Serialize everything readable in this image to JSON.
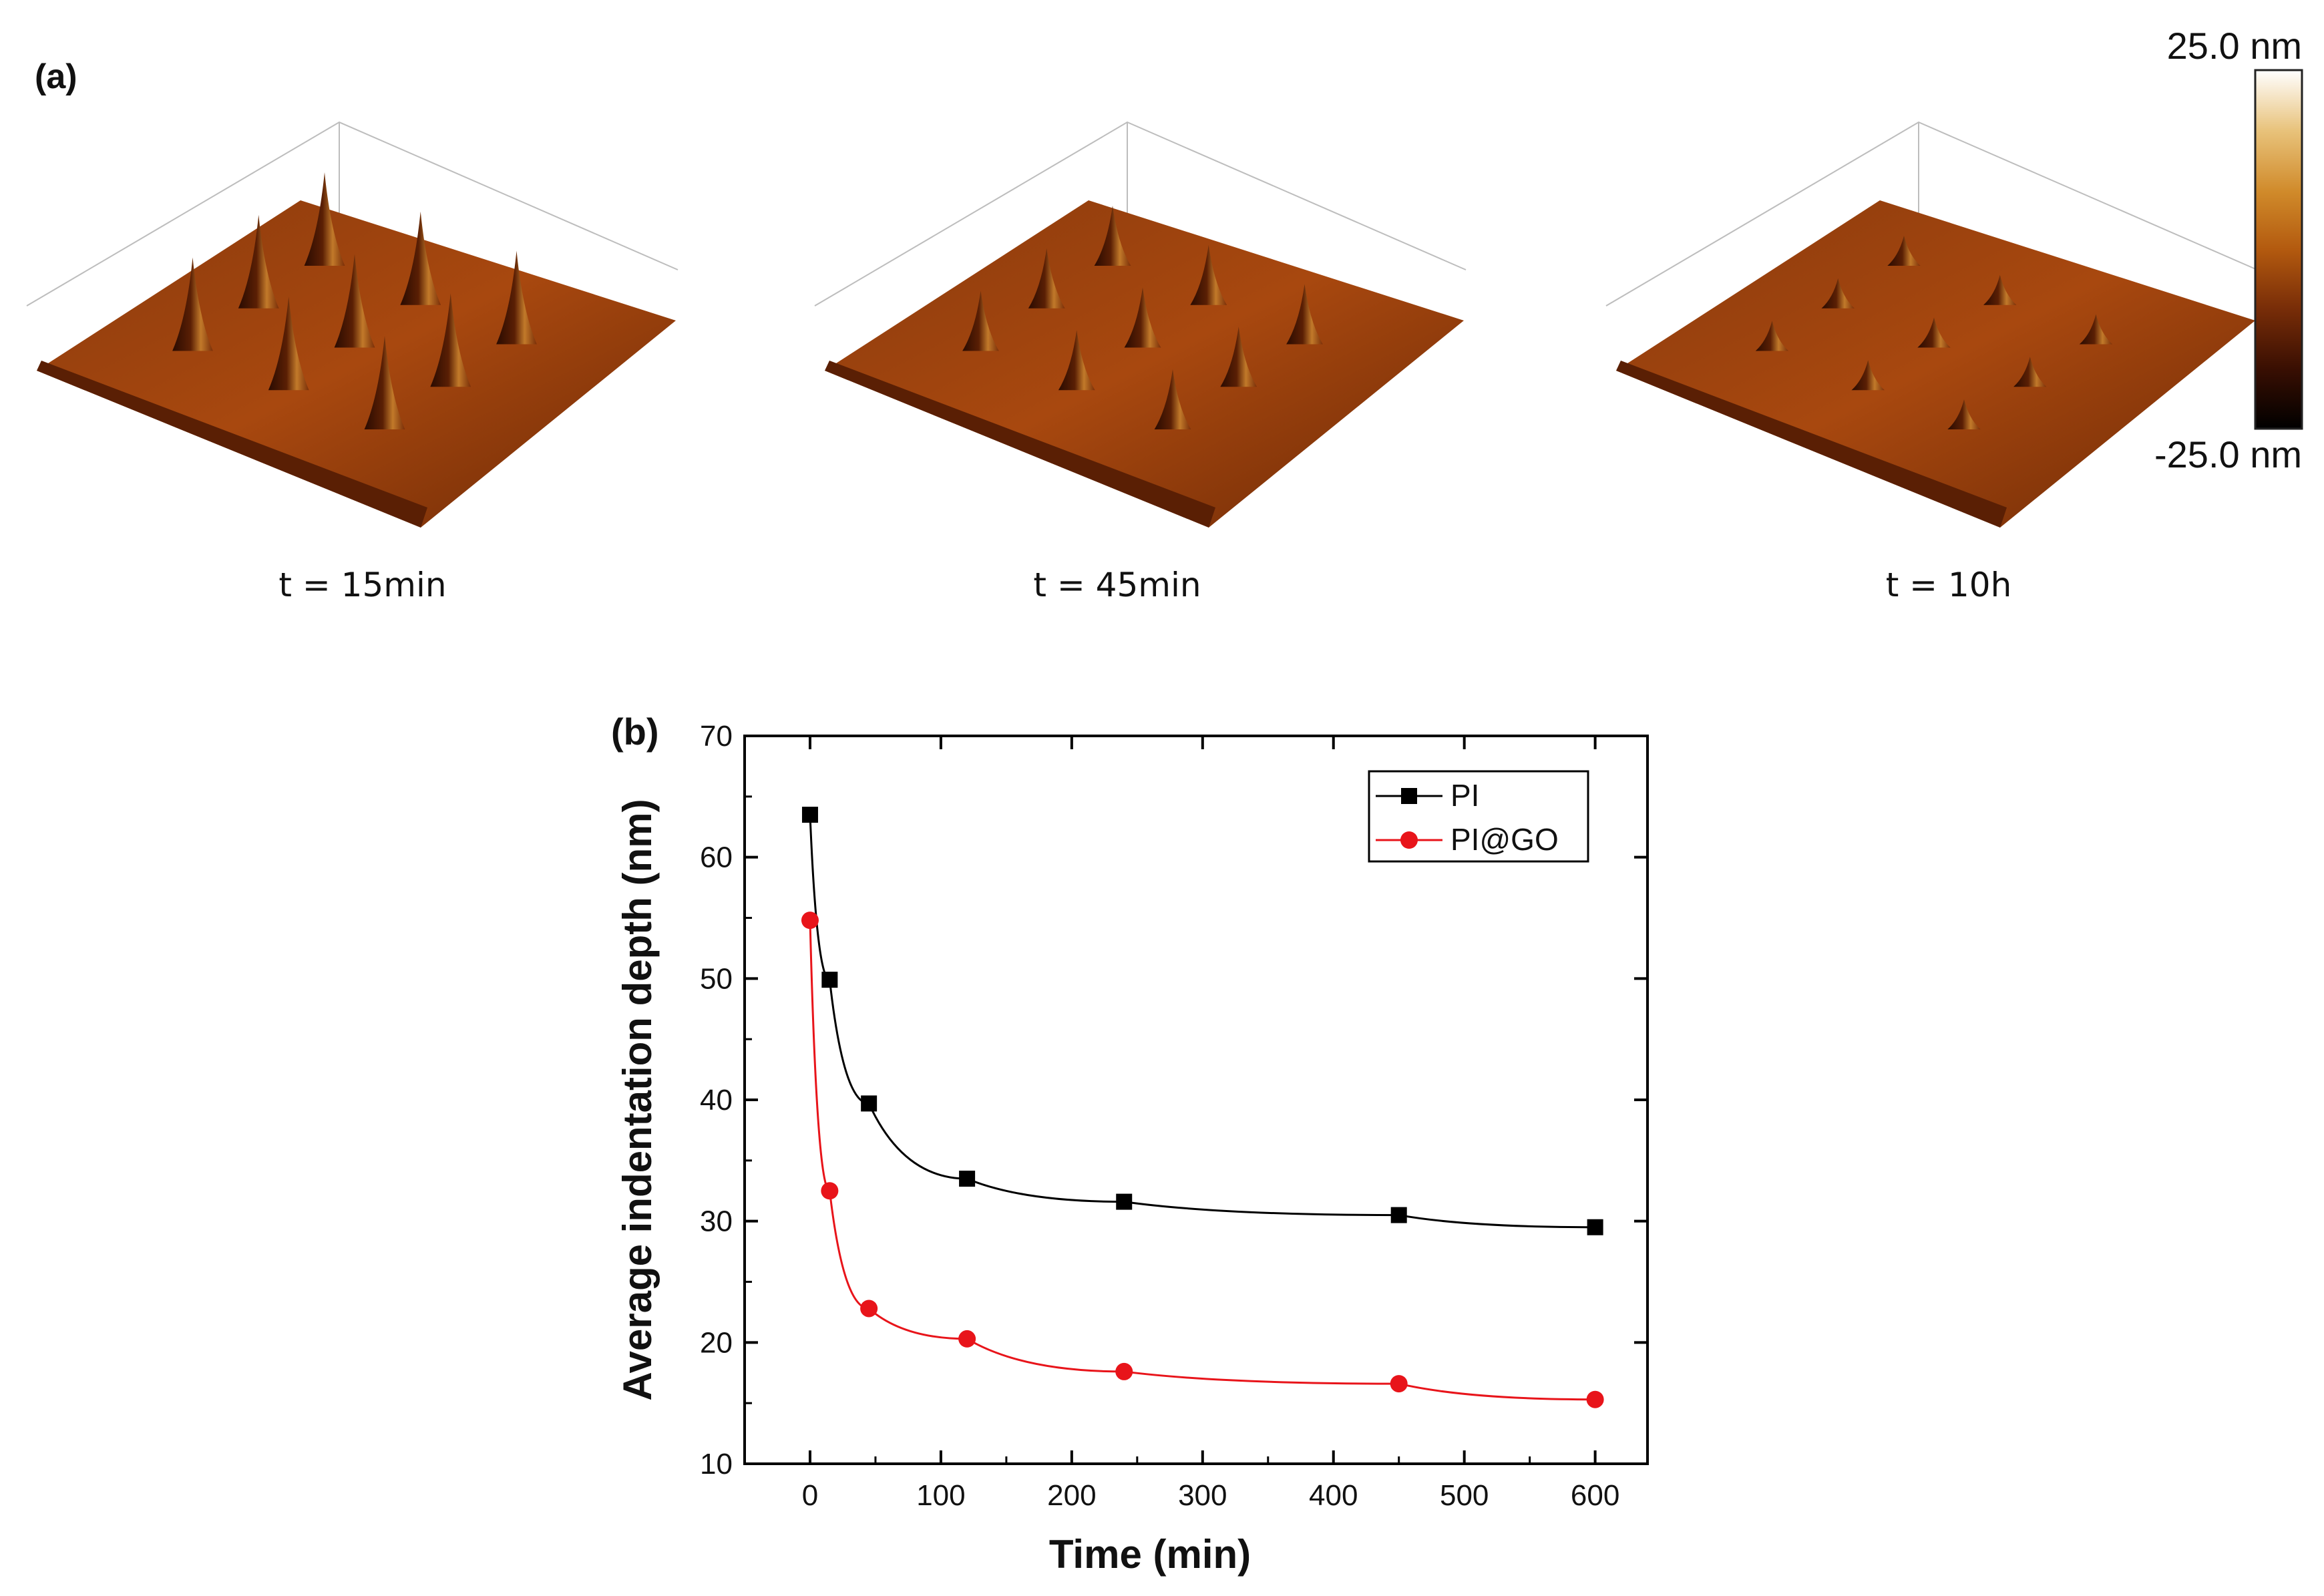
{
  "panel_a": {
    "label": "(a)",
    "captions": [
      "t = 15min",
      "t = 45min",
      "t = 10h"
    ],
    "peak_height_nm": [
      28,
      18,
      9
    ],
    "colorbar": {
      "max_label": "25.0 nm",
      "min_label": "-25.0 nm",
      "colors": [
        "#000000",
        "#3a0f02",
        "#7a2e08",
        "#b35a0f",
        "#d08a2a",
        "#e8c27a",
        "#ffffff"
      ]
    }
  },
  "panel_b_label": "(b)",
  "chart_data": {
    "type": "line",
    "title": "",
    "xlabel": "Time (min)",
    "ylabel": "Average indentation depth (nm)",
    "xlim": [
      -50,
      640
    ],
    "ylim": [
      10,
      70
    ],
    "xticks": [
      0,
      100,
      200,
      300,
      400,
      500,
      600
    ],
    "yticks": [
      10,
      20,
      30,
      40,
      50,
      60,
      70
    ],
    "x": [
      0,
      15,
      45,
      120,
      240,
      450,
      600
    ],
    "series": [
      {
        "name": "PI",
        "marker": "square",
        "color": "#000000",
        "values": [
          63.5,
          49.9,
          39.7,
          33.5,
          31.6,
          30.5,
          29.5
        ]
      },
      {
        "name": "PI@GO",
        "marker": "circle",
        "color": "#e8141a",
        "values": [
          54.8,
          32.5,
          22.8,
          20.3,
          17.6,
          16.6,
          15.3
        ]
      }
    ],
    "legend": "top-right"
  }
}
